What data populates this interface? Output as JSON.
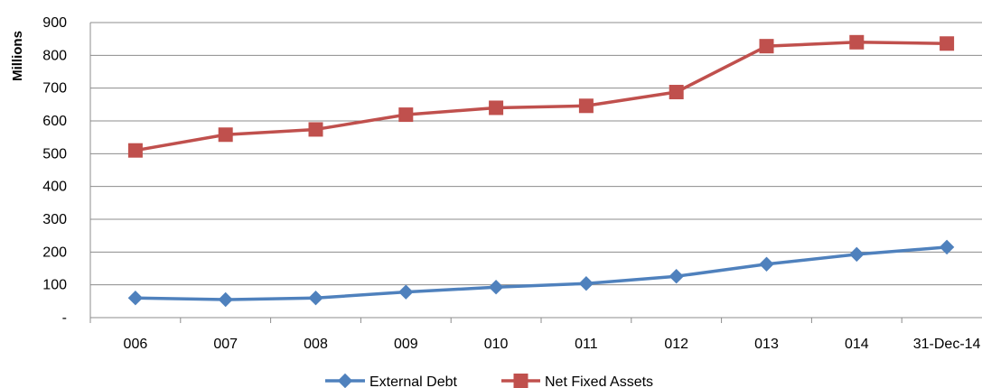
{
  "chart_data": {
    "type": "line",
    "title": "",
    "xlabel": "",
    "ylabel": "Millions",
    "categories": [
      "006",
      "007",
      "008",
      "009",
      "010",
      "011",
      "012",
      "013",
      "014",
      "31-Dec-14"
    ],
    "ylim": [
      0,
      900
    ],
    "yticks": [
      0,
      100,
      200,
      300,
      400,
      500,
      600,
      700,
      800,
      900
    ],
    "ytick_labels": [
      "-",
      "100",
      "200",
      "300",
      "400",
      "500",
      "600",
      "700",
      "800",
      "900"
    ],
    "grid": true,
    "legend_position": "bottom",
    "series": [
      {
        "name": "External Debt",
        "color": "#4F81BD",
        "marker": "diamond",
        "values": [
          60,
          55,
          60,
          78,
          93,
          104,
          126,
          163,
          193,
          215
        ]
      },
      {
        "name": "Net Fixed Assets",
        "color": "#C0504D",
        "marker": "square",
        "values": [
          510,
          558,
          574,
          619,
          640,
          646,
          688,
          828,
          840,
          836
        ]
      }
    ]
  }
}
